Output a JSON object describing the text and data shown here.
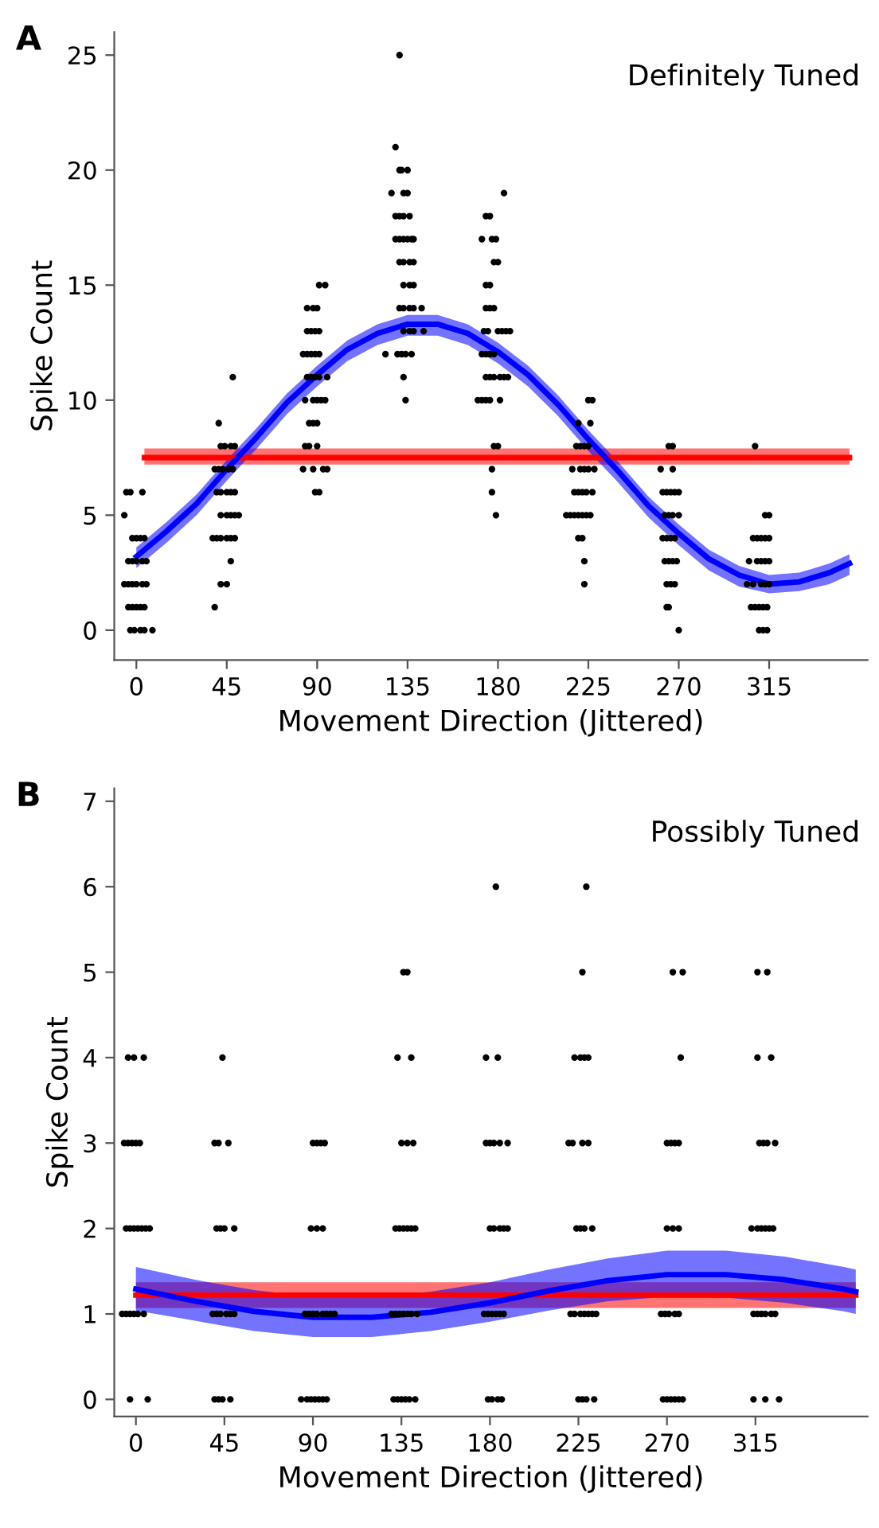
{
  "chart_data": [
    {
      "type": "scatter",
      "xlabel": "Movement Direction (Jittered)",
      "ylabel": "Spike Count",
      "annotations": [
        "A",
        "Definitely Tuned"
      ],
      "xlim": [
        -11,
        364
      ],
      "ylim": [
        -1.3,
        26
      ],
      "xticks": [
        0,
        45,
        90,
        135,
        180,
        225,
        270,
        315
      ],
      "yticks": [
        0,
        5,
        10,
        15,
        20,
        25
      ],
      "series": [
        {
          "color": "#000000",
          "marker": "circle",
          "x": [
            -5,
            -3,
            3,
            -6,
            -2,
            0,
            2,
            4,
            -4,
            -2,
            0,
            3,
            5,
            -6,
            -4,
            -2,
            0,
            3,
            5,
            -4,
            -2,
            0,
            2,
            4,
            -3,
            -1,
            2,
            4,
            8,
            48,
            41,
            42,
            44,
            47,
            49,
            39,
            41,
            43,
            46,
            48,
            40,
            42,
            45,
            47,
            49,
            42,
            45,
            47,
            49,
            51,
            38,
            40,
            42,
            45,
            47,
            49,
            47,
            42,
            45,
            39,
            91,
            94,
            85,
            88,
            90,
            85,
            87,
            89,
            91,
            83,
            85,
            87,
            89,
            91,
            85,
            87,
            89,
            91,
            95,
            84,
            88,
            90,
            92,
            94,
            86,
            88,
            90,
            84,
            86,
            90,
            83,
            88,
            93,
            95,
            89,
            91,
            131,
            129,
            131,
            132,
            135,
            127,
            133,
            135,
            129,
            131,
            133,
            136,
            129,
            131,
            133,
            135,
            137,
            138,
            131,
            133,
            136,
            138,
            133,
            136,
            138,
            131,
            133,
            136,
            138,
            142,
            133,
            136,
            138,
            143,
            124,
            130,
            132,
            134,
            137,
            133,
            134,
            183,
            174,
            176,
            172,
            177,
            179,
            178,
            180,
            174,
            176,
            174,
            176,
            178,
            173,
            175,
            180,
            182,
            184,
            186,
            172,
            174,
            176,
            178,
            174,
            176,
            178,
            181,
            183,
            185,
            170,
            172,
            174,
            176,
            181,
            178,
            180,
            177,
            177,
            179,
            225,
            227,
            220,
            226,
            219,
            221,
            223,
            225,
            217,
            221,
            223,
            225,
            228,
            218,
            220,
            222,
            224,
            227,
            214,
            216,
            218,
            220,
            222,
            224,
            226,
            220,
            222,
            223,
            223,
            265,
            267,
            261,
            267,
            262,
            264,
            266,
            268,
            270,
            263,
            265,
            267,
            270,
            262,
            264,
            266,
            268,
            263,
            265,
            267,
            269,
            264,
            266,
            268,
            264,
            265,
            270,
            308,
            313,
            315,
            307,
            309,
            311,
            313,
            315,
            305,
            309,
            311,
            313,
            315,
            304,
            307,
            311,
            313,
            315,
            306,
            308,
            310,
            312,
            314,
            310,
            312,
            314
          ],
          "values": [
            6,
            6,
            6,
            5,
            4,
            4,
            4,
            4,
            3,
            3,
            3,
            3,
            3,
            2,
            2,
            2,
            2,
            2,
            2,
            1,
            1,
            1,
            1,
            1,
            0,
            0,
            0,
            0,
            0,
            11,
            9,
            8,
            8,
            8,
            8,
            7,
            7,
            7,
            7,
            7,
            6,
            6,
            6,
            6,
            6,
            5,
            5,
            5,
            5,
            5,
            4,
            4,
            4,
            4,
            4,
            4,
            3,
            2,
            2,
            1,
            15,
            15,
            14,
            14,
            14,
            13,
            13,
            13,
            13,
            12,
            12,
            12,
            12,
            12,
            11,
            11,
            11,
            11,
            11,
            10,
            10,
            10,
            10,
            10,
            9,
            9,
            9,
            8,
            8,
            8,
            7,
            7,
            7,
            7,
            6,
            6,
            25,
            21,
            20,
            20,
            20,
            19,
            19,
            19,
            18,
            18,
            18,
            18,
            17,
            17,
            17,
            17,
            17,
            17,
            16,
            16,
            16,
            16,
            15,
            15,
            15,
            14,
            14,
            14,
            14,
            14,
            13,
            13,
            13,
            13,
            12,
            12,
            12,
            12,
            12,
            11,
            10,
            19,
            18,
            18,
            17,
            17,
            17,
            16,
            16,
            15,
            15,
            14,
            14,
            14,
            13,
            13,
            13,
            13,
            13,
            13,
            12,
            12,
            12,
            12,
            11,
            11,
            11,
            11,
            11,
            11,
            10,
            10,
            10,
            10,
            10,
            8,
            8,
            7,
            6,
            5,
            10,
            10,
            9,
            9,
            8,
            8,
            8,
            8,
            7,
            7,
            7,
            7,
            7,
            6,
            6,
            6,
            6,
            6,
            5,
            5,
            5,
            5,
            5,
            5,
            5,
            4,
            4,
            3,
            2,
            8,
            8,
            7,
            7,
            6,
            6,
            6,
            6,
            6,
            5,
            5,
            5,
            5,
            4,
            4,
            4,
            4,
            3,
            3,
            3,
            3,
            2,
            2,
            2,
            1,
            1,
            0,
            8,
            5,
            5,
            4,
            4,
            4,
            4,
            4,
            3,
            3,
            3,
            3,
            3,
            2,
            2,
            2,
            2,
            2,
            1,
            1,
            1,
            1,
            1,
            0,
            0,
            0
          ]
        },
        {
          "type": "line",
          "color": "#ff0000",
          "x": [
            4,
            355
          ],
          "values": [
            7.5,
            7.5
          ],
          "lower": [
            7.2,
            7.2
          ],
          "upper": [
            7.9,
            7.9
          ]
        },
        {
          "type": "line",
          "color": "#0000ff",
          "x": [
            0,
            15,
            30,
            45,
            60,
            75,
            90,
            105,
            120,
            135,
            150,
            165,
            180,
            195,
            210,
            225,
            240,
            255,
            270,
            285,
            300,
            315,
            330,
            345,
            355
          ],
          "values": [
            3.2,
            4.3,
            5.5,
            7.0,
            8.4,
            9.9,
            11.1,
            12.2,
            12.9,
            13.3,
            13.3,
            12.9,
            12.1,
            11.1,
            9.8,
            8.3,
            6.9,
            5.4,
            4.2,
            3.1,
            2.4,
            2.0,
            2.1,
            2.5,
            2.9
          ],
          "lower": [
            2.7,
            3.8,
            5.0,
            6.5,
            7.9,
            9.4,
            10.6,
            11.7,
            12.4,
            12.8,
            12.8,
            12.4,
            11.6,
            10.6,
            9.3,
            7.8,
            6.4,
            4.9,
            3.7,
            2.6,
            1.9,
            1.6,
            1.7,
            2.0,
            2.4
          ],
          "upper": [
            3.6,
            4.7,
            5.9,
            7.4,
            8.8,
            10.3,
            11.5,
            12.6,
            13.3,
            13.7,
            13.7,
            13.3,
            12.5,
            11.5,
            10.2,
            8.7,
            7.3,
            5.8,
            4.6,
            3.5,
            2.8,
            2.4,
            2.5,
            2.9,
            3.3
          ]
        }
      ]
    },
    {
      "type": "scatter",
      "xlabel": "Movement Direction (Jittered)",
      "ylabel": "Spike Count",
      "annotations": [
        "B",
        "Possibly Tuned"
      ],
      "xlim": [
        -11,
        372
      ],
      "ylim": [
        -0.2,
        7.15
      ],
      "xticks": [
        0,
        45,
        90,
        135,
        180,
        225,
        270,
        315
      ],
      "yticks": [
        0,
        1,
        2,
        3,
        4,
        5,
        6,
        7
      ],
      "series": [
        {
          "color": "#000000",
          "marker": "circle",
          "x": [
            -4,
            -1,
            4,
            -6,
            -4,
            -2,
            0,
            2,
            -5,
            -3,
            -1,
            1,
            3,
            5,
            7,
            -7,
            -5,
            -3,
            -1,
            1,
            4,
            -3,
            6,
            44,
            40,
            42,
            47,
            41,
            43,
            45,
            50,
            39,
            41,
            43,
            46,
            48,
            50,
            40,
            42,
            44,
            48,
            90,
            92,
            94,
            96,
            89,
            92,
            95,
            86,
            88,
            90,
            92,
            95,
            97,
            99,
            101,
            84,
            87,
            89,
            91,
            93,
            95,
            97,
            136,
            138,
            133,
            140,
            135,
            138,
            141,
            132,
            134,
            136,
            138,
            140,
            142,
            130,
            132,
            134,
            136,
            138,
            140,
            143,
            131,
            133,
            135,
            137,
            139,
            142,
            183,
            178,
            184,
            178,
            180,
            182,
            185,
            189,
            180,
            182,
            185,
            187,
            189,
            177,
            179,
            181,
            183,
            185,
            187,
            179,
            181,
            184,
            186,
            229,
            227,
            223,
            226,
            228,
            230,
            220,
            222,
            227,
            230,
            224,
            226,
            228,
            232,
            221,
            223,
            226,
            228,
            230,
            232,
            234,
            225,
            227,
            229,
            233,
            273,
            278,
            277,
            270,
            272,
            274,
            276,
            270,
            273,
            276,
            267,
            269,
            271,
            274,
            276,
            268,
            270,
            272,
            274,
            276,
            278,
            316,
            321,
            316,
            323,
            317,
            319,
            321,
            325,
            313,
            316,
            318,
            320,
            322,
            324,
            314,
            316,
            318,
            320,
            323,
            325,
            314,
            320,
            327
          ],
          "values": [
            4,
            4,
            4,
            3,
            3,
            3,
            3,
            3,
            2,
            2,
            2,
            2,
            2,
            2,
            2,
            1,
            1,
            1,
            1,
            1,
            1,
            0,
            0,
            4,
            3,
            3,
            3,
            2,
            2,
            2,
            2,
            1,
            1,
            1,
            1,
            1,
            1,
            0,
            0,
            0,
            0,
            3,
            3,
            3,
            3,
            2,
            2,
            2,
            1,
            1,
            1,
            1,
            1,
            1,
            1,
            1,
            0,
            0,
            0,
            0,
            0,
            0,
            0,
            5,
            5,
            4,
            4,
            3,
            3,
            3,
            2,
            2,
            2,
            2,
            2,
            2,
            1,
            1,
            1,
            1,
            1,
            1,
            1,
            0,
            0,
            0,
            0,
            0,
            0,
            6,
            4,
            4,
            3,
            3,
            3,
            3,
            3,
            2,
            2,
            2,
            2,
            2,
            1,
            1,
            1,
            1,
            1,
            1,
            0,
            0,
            0,
            0,
            6,
            5,
            4,
            4,
            4,
            4,
            3,
            3,
            3,
            3,
            2,
            2,
            2,
            2,
            1,
            1,
            1,
            1,
            1,
            1,
            1,
            0,
            0,
            0,
            0,
            5,
            5,
            4,
            3,
            3,
            3,
            3,
            2,
            2,
            2,
            1,
            1,
            1,
            1,
            1,
            0,
            0,
            0,
            0,
            0,
            0,
            5,
            5,
            4,
            4,
            3,
            3,
            3,
            3,
            2,
            2,
            2,
            2,
            2,
            2,
            1,
            1,
            1,
            1,
            1,
            1,
            0,
            0,
            0
          ]
        },
        {
          "type": "line",
          "color": "#ff0000",
          "x": [
            0,
            366
          ],
          "values": [
            1.22,
            1.22
          ],
          "lower": [
            1.07,
            1.07
          ],
          "upper": [
            1.37,
            1.37
          ]
        },
        {
          "type": "line",
          "color": "#0000ff",
          "x": [
            0,
            30,
            60,
            90,
            120,
            150,
            180,
            210,
            240,
            270,
            300,
            330,
            360,
            366
          ],
          "values": [
            1.29,
            1.15,
            1.03,
            0.96,
            0.96,
            1.02,
            1.13,
            1.27,
            1.39,
            1.46,
            1.46,
            1.4,
            1.29,
            1.26
          ],
          "lower": [
            1.04,
            0.92,
            0.8,
            0.73,
            0.73,
            0.8,
            0.91,
            1.04,
            1.15,
            1.2,
            1.19,
            1.13,
            1.03,
            1.0
          ],
          "upper": [
            1.55,
            1.4,
            1.28,
            1.2,
            1.2,
            1.26,
            1.37,
            1.52,
            1.65,
            1.74,
            1.74,
            1.67,
            1.55,
            1.52
          ]
        }
      ]
    }
  ]
}
